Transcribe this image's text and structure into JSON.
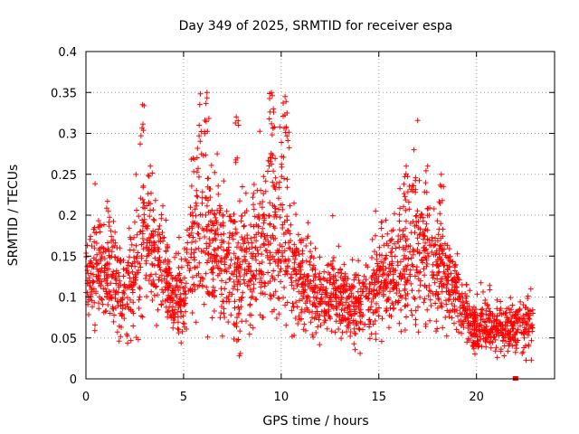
{
  "chart_data": {
    "type": "scatter",
    "title": "Day 349 of 2025, SRMTID for receiver espa",
    "xlabel": "GPS time / hours",
    "ylabel": "SRMTID / TECUs",
    "xlim": [
      0,
      24
    ],
    "ylim": [
      0,
      0.4
    ],
    "xticks": [
      0,
      5,
      10,
      15,
      20
    ],
    "xtick_labels": [
      "0",
      "5",
      "10",
      "15",
      "20"
    ],
    "yticks": [
      0,
      0.05,
      0.1,
      0.15,
      0.2,
      0.25,
      0.3,
      0.35,
      0.4
    ],
    "ytick_labels": [
      "0",
      "0.05",
      "0.1",
      "0.15",
      "0.2",
      "0.25",
      "0.3",
      "0.35",
      "0.4"
    ],
    "grid": true,
    "color": "#ff0000",
    "marker": "+",
    "series": [
      {
        "name": "SRMTID",
        "trend": {
          "hours": [
            0,
            0.5,
            1,
            1.5,
            2,
            2.5,
            3,
            3.5,
            4,
            4.5,
            5,
            5.5,
            6,
            6.5,
            7,
            7.5,
            8,
            8.5,
            9,
            9.5,
            10,
            10.5,
            11,
            11.5,
            12,
            12.5,
            13,
            13.5,
            14,
            14.5,
            15,
            15.5,
            16,
            16.5,
            17,
            17.5,
            18,
            18.5,
            19,
            19.5,
            20,
            20.5,
            21,
            21.5,
            22,
            22.5,
            22.9
          ],
          "median": [
            0.12,
            0.14,
            0.13,
            0.11,
            0.1,
            0.13,
            0.16,
            0.15,
            0.13,
            0.1,
            0.1,
            0.17,
            0.18,
            0.17,
            0.15,
            0.14,
            0.13,
            0.14,
            0.17,
            0.19,
            0.19,
            0.15,
            0.12,
            0.11,
            0.1,
            0.1,
            0.1,
            0.09,
            0.09,
            0.1,
            0.12,
            0.13,
            0.14,
            0.14,
            0.15,
            0.14,
            0.13,
            0.12,
            0.1,
            0.08,
            0.06,
            0.065,
            0.065,
            0.06,
            0.06,
            0.065,
            0.07
          ],
          "spread": [
            0.03,
            0.04,
            0.04,
            0.04,
            0.035,
            0.05,
            0.07,
            0.05,
            0.04,
            0.03,
            0.04,
            0.06,
            0.07,
            0.06,
            0.05,
            0.05,
            0.05,
            0.05,
            0.06,
            0.07,
            0.07,
            0.05,
            0.04,
            0.035,
            0.03,
            0.03,
            0.03,
            0.03,
            0.03,
            0.035,
            0.04,
            0.04,
            0.05,
            0.06,
            0.06,
            0.05,
            0.05,
            0.04,
            0.03,
            0.025,
            0.02,
            0.02,
            0.02,
            0.02,
            0.02,
            0.025,
            0.025
          ]
        },
        "peaks": [
          [
            2.9,
            0.335
          ],
          [
            3.3,
            0.26
          ],
          [
            6.2,
            0.35
          ],
          [
            5.8,
            0.31
          ],
          [
            7.7,
            0.32
          ],
          [
            9.5,
            0.35
          ],
          [
            9.6,
            0.33
          ],
          [
            10.2,
            0.345
          ],
          [
            10.3,
            0.325
          ],
          [
            16.8,
            0.28
          ],
          [
            16.4,
            0.26
          ],
          [
            17.5,
            0.26
          ],
          [
            18.2,
            0.25
          ]
        ],
        "outliers": [
          [
            22.0,
            0.0
          ]
        ]
      }
    ]
  }
}
